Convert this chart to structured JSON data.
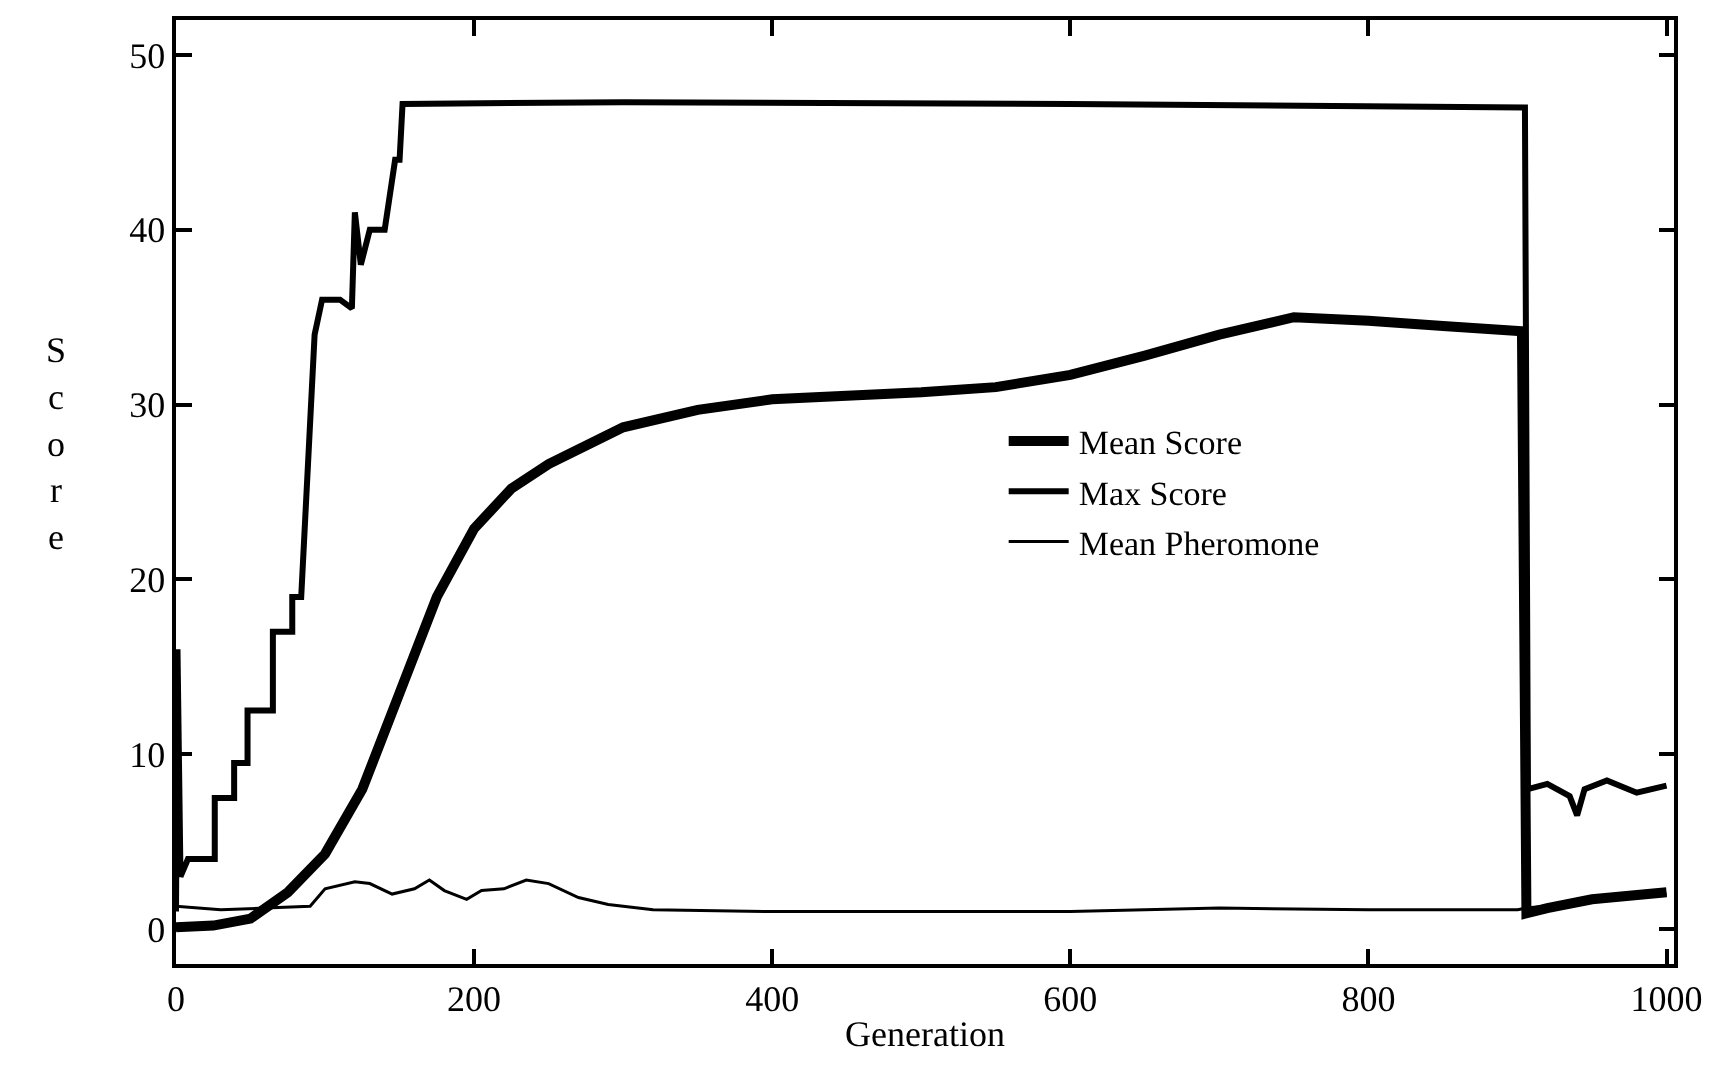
{
  "chart_data": {
    "type": "line",
    "xlabel": "Generation",
    "ylabel": "Score",
    "xlim": [
      0,
      1005
    ],
    "ylim": [
      -2,
      52
    ],
    "xticks": [
      0,
      200,
      400,
      600,
      800,
      1000
    ],
    "yticks": [
      0,
      10,
      20,
      30,
      40,
      50
    ],
    "legend": "center",
    "marker": "none",
    "line_style": "solid",
    "series": [
      {
        "name": "Mean Score",
        "color": "#000000",
        "x": [
          0,
          25,
          50,
          75,
          100,
          125,
          150,
          175,
          200,
          225,
          250,
          300,
          350,
          400,
          500,
          550,
          600,
          650,
          700,
          750,
          800,
          850,
          903,
          906,
          920,
          950,
          1000
        ],
        "values": [
          0.1,
          0.2,
          0.6,
          2.1,
          4.3,
          8,
          13.5,
          19,
          22.9,
          25.2,
          26.6,
          28.7,
          29.7,
          30.3,
          30.7,
          31,
          31.7,
          32.8,
          34,
          35,
          34.8,
          34.5,
          34.2,
          0.9,
          1.2,
          1.7,
          2.1
        ]
      },
      {
        "name": "Max Score",
        "color": "#000000",
        "x": [
          0,
          1,
          3,
          8,
          26,
          26,
          39,
          39,
          48,
          48,
          65,
          65,
          78,
          78,
          84,
          93,
          98,
          110,
          118,
          120,
          124,
          130,
          140,
          147,
          150,
          152,
          300,
          600,
          905,
          907,
          920,
          935,
          940,
          945,
          960,
          980,
          1000
        ],
        "values": [
          1,
          16,
          3,
          4,
          4,
          7.5,
          7.5,
          9.5,
          9.5,
          12.5,
          12.5,
          17,
          17,
          19,
          19,
          34,
          36,
          36,
          35.5,
          41,
          38,
          40,
          40,
          44,
          44,
          47.2,
          47.3,
          47.2,
          47,
          8,
          8.3,
          7.6,
          6.5,
          8,
          8.5,
          7.8,
          8.2
        ]
      },
      {
        "name": "Mean Pheromone",
        "color": "#000000",
        "x": [
          0,
          30,
          60,
          90,
          100,
          120,
          130,
          145,
          160,
          170,
          180,
          195,
          205,
          220,
          235,
          250,
          270,
          290,
          320,
          400,
          500,
          600,
          700,
          800,
          900,
          906,
          1000
        ],
        "values": [
          1.3,
          1.1,
          1.2,
          1.3,
          2.3,
          2.7,
          2.6,
          2.0,
          2.3,
          2.8,
          2.2,
          1.7,
          2.2,
          2.3,
          2.8,
          2.6,
          1.8,
          1.4,
          1.1,
          1.0,
          1.0,
          1.0,
          1.2,
          1.1,
          1.1,
          1.2,
          2.0
        ]
      }
    ]
  }
}
